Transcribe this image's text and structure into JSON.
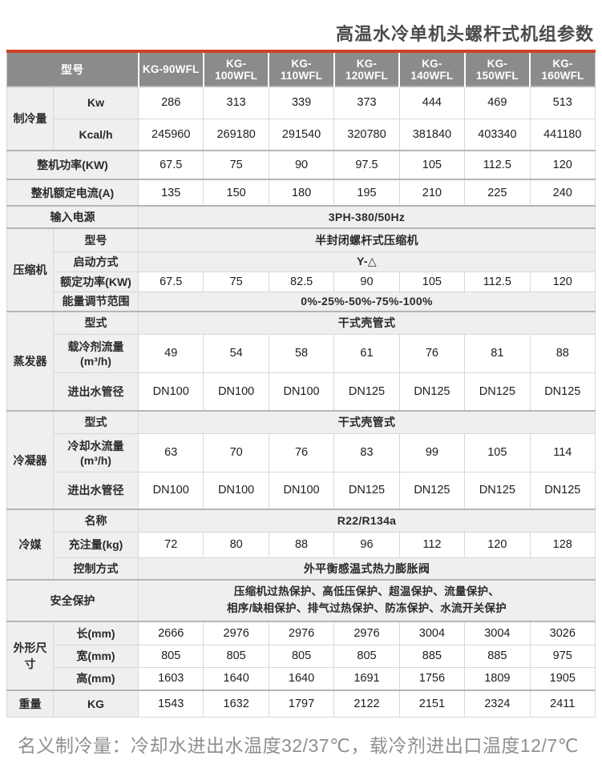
{
  "page": {
    "title": "高温水冷单机头螺杆式机组参数",
    "footnote": "名义制冷量：冷却水进出水温度32/37℃，载冷剂进出口温度12/7℃"
  },
  "colors": {
    "accent_red": "#cb4327",
    "header_bg": "#8b8b8b",
    "header_text": "#ffffff",
    "label_bg": "#efefef",
    "border": "#d8d8d8",
    "text": "#1d1d1d",
    "muted": "#8f8f8f"
  },
  "table": {
    "header": {
      "model_label": "型号",
      "models": [
        "KG-90WFL",
        "KG-100WFL",
        "KG-110WFL",
        "KG-120WFL",
        "KG-140WFL",
        "KG-150WFL",
        "KG-160WFL"
      ]
    },
    "rows": [
      {
        "group": "制冷量",
        "group_rowspan": 2,
        "label": "Kw",
        "values": [
          "286",
          "313",
          "339",
          "373",
          "444",
          "469",
          "513"
        ]
      },
      {
        "label": "Kcal/h",
        "values": [
          "245960",
          "269180",
          "291540",
          "320780",
          "381840",
          "403340",
          "441180"
        ]
      },
      {
        "label": "整机功率(KW)",
        "label_span": 2,
        "values": [
          "67.5",
          "75",
          "90",
          "97.5",
          "105",
          "112.5",
          "120"
        ]
      },
      {
        "label": "整机额定电流(A)",
        "label_span": 2,
        "values": [
          "135",
          "150",
          "180",
          "195",
          "210",
          "225",
          "240"
        ]
      },
      {
        "label": "输入电源",
        "label_span": 2,
        "merged_value": "3PH-380/50Hz"
      },
      {
        "group": "压缩机",
        "group_rowspan": 4,
        "label": "型号",
        "merged_value": "半封闭螺杆式压缩机"
      },
      {
        "label": "启动方式",
        "merged_value": "Y-△"
      },
      {
        "label": "额定功率(KW)",
        "values": [
          "67.5",
          "75",
          "82.5",
          "90",
          "105",
          "112.5",
          "120"
        ]
      },
      {
        "label": "能量调节范围",
        "merged_value": "0%-25%-50%-75%-100%"
      },
      {
        "group": "蒸发器",
        "group_rowspan": 3,
        "label": "型式",
        "merged_value": "干式壳管式"
      },
      {
        "label": "载冷剂流量(m³/h)",
        "values": [
          "49",
          "54",
          "58",
          "61",
          "76",
          "81",
          "88"
        ]
      },
      {
        "label": "进出水管径",
        "values": [
          "DN100",
          "DN100",
          "DN100",
          "DN125",
          "DN125",
          "DN125",
          "DN125"
        ]
      },
      {
        "group": "冷凝器",
        "group_rowspan": 3,
        "label": "型式",
        "merged_value": "干式壳管式"
      },
      {
        "label": "冷却水流量(m³/h)",
        "values": [
          "63",
          "70",
          "76",
          "83",
          "99",
          "105",
          "114"
        ]
      },
      {
        "label": "进出水管径",
        "values": [
          "DN100",
          "DN100",
          "DN100",
          "DN125",
          "DN125",
          "DN125",
          "DN125"
        ]
      },
      {
        "group": "冷媒",
        "group_rowspan": 3,
        "label": "名称",
        "merged_value": "R22/R134a"
      },
      {
        "label": "充注量(kg)",
        "values": [
          "72",
          "80",
          "88",
          "96",
          "112",
          "120",
          "128"
        ]
      },
      {
        "label": "控制方式",
        "merged_value": "外平衡感温式热力膨胀阀"
      },
      {
        "label": "安全保护",
        "label_span": 2,
        "merged_value_lines": [
          "压缩机过热保护、高低压保护、超温保护、流量保护、",
          "相序/缺相保护、排气过热保护、防冻保护、水流开关保护"
        ]
      },
      {
        "group": "外形尺寸",
        "group_rowspan": 3,
        "label": "长(mm)",
        "values": [
          "2666",
          "2976",
          "2976",
          "2976",
          "3004",
          "3004",
          "3026"
        ]
      },
      {
        "label": "宽(mm)",
        "values": [
          "805",
          "805",
          "805",
          "805",
          "885",
          "885",
          "975"
        ]
      },
      {
        "label": "高(mm)",
        "values": [
          "1603",
          "1640",
          "1640",
          "1691",
          "1756",
          "1809",
          "1905"
        ]
      },
      {
        "group": "重量",
        "group_rowspan": 1,
        "label": "KG",
        "values": [
          "1543",
          "1632",
          "1797",
          "2122",
          "2151",
          "2324",
          "2411"
        ]
      }
    ]
  }
}
